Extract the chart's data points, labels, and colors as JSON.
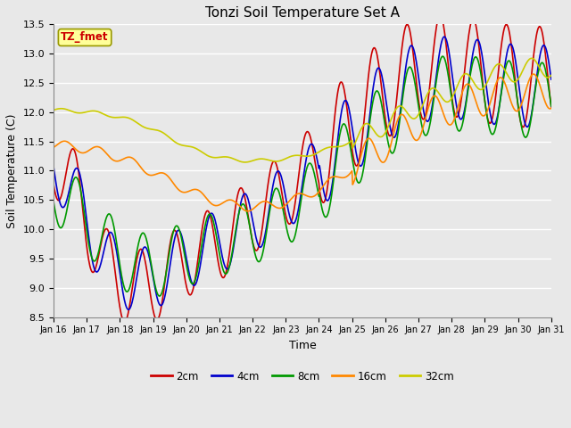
{
  "title": "Tonzi Soil Temperature Set A",
  "xlabel": "Time",
  "ylabel": "Soil Temperature (C)",
  "ylim": [
    8.5,
    13.5
  ],
  "annotation": "TZ_fmet",
  "annotation_color": "#cc0000",
  "annotation_bg": "#ffff99",
  "annotation_edge": "#999900",
  "bg_color": "#e8e8e8",
  "tick_labels": [
    "Jan 16",
    "Jan 17",
    "Jan 18",
    "Jan 19",
    "Jan 20",
    "Jan 21",
    "Jan 22",
    "Jan 23",
    "Jan 24",
    "Jan 25",
    "Jan 26",
    "Jan 27",
    "Jan 28",
    "Jan 29",
    "Jan 30",
    "Jan 31"
  ],
  "series_colors": [
    "#cc0000",
    "#0000cc",
    "#009900",
    "#ff8800",
    "#cccc00"
  ],
  "series_labels": [
    "2cm",
    "4cm",
    "8cm",
    "16cm",
    "32cm"
  ],
  "line_width": 1.2,
  "figsize": [
    6.4,
    4.8
  ],
  "dpi": 100
}
